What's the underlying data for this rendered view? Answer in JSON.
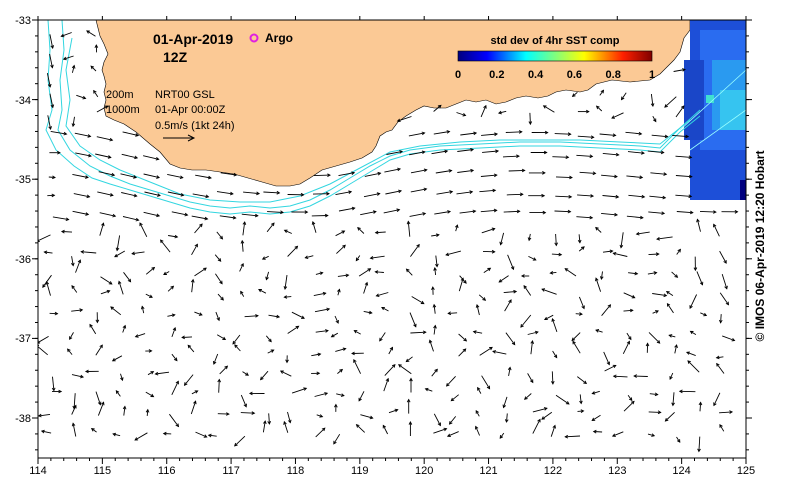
{
  "map": {
    "date_title": "01-Apr-2019",
    "time_title": "12Z",
    "argo_label": "Argo",
    "legend_lines": [
      "200m",
      "1000m"
    ],
    "product_lines": [
      "NRT00 GSL",
      "01-Apr 00:00Z",
      "0.5m/s (1kt 24h)"
    ],
    "colorbar": {
      "title": "std dev of 4hr SST comp",
      "ticks": [
        "0",
        "0.2",
        "0.4",
        "0.6",
        "0.8",
        "1"
      ],
      "range": [
        0,
        1
      ]
    },
    "x_axis": {
      "ticks": [
        "114",
        "115",
        "116",
        "117",
        "118",
        "119",
        "120",
        "121",
        "122",
        "123",
        "124",
        "125"
      ],
      "range": [
        114,
        125
      ]
    },
    "y_axis": {
      "ticks": [
        "-33",
        "-34",
        "-35",
        "-36",
        "-37",
        "-38"
      ],
      "range": [
        -38.5,
        -33
      ]
    },
    "credit": "© IMOS 06-Apr-2019 12:20 Hobart",
    "colors": {
      "land": "#fbc995",
      "isobath": "#33d6e0",
      "argo": "#e020e0",
      "arrow": "#000000"
    }
  }
}
